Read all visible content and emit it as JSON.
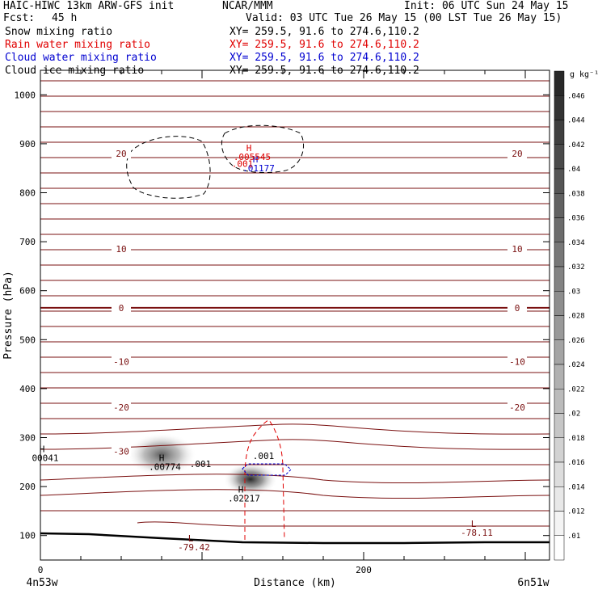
{
  "header": {
    "model": "HAIC-HIWC 13km ARW-GFS init",
    "org": "NCAR/MMM",
    "init": "Init: 06 UTC Sun 24 May 15",
    "fcst_label": "Fcst:",
    "fcst_value": "45 h",
    "valid": "Valid: 03 UTC Tue 26 May 15 (00 LST Tue 26 May 15)"
  },
  "fields": [
    {
      "name": "Snow mixing ratio",
      "xy": "XY= 259.5, 91.6 to 274.6,110.2",
      "color": "#000000"
    },
    {
      "name": "Rain water mixing ratio",
      "xy": "XY= 259.5, 91.6 to 274.6,110.2",
      "color": "#e00000"
    },
    {
      "name": "Cloud water mixing ratio",
      "xy": "XY= 259.5, 91.6 to 274.6,110.2",
      "color": "#0000d0"
    },
    {
      "name": "Cloud ice mixing ratio",
      "xy": "XY= 259.5, 91.6 to 274.6,110.2",
      "color": "#000000"
    }
  ],
  "chart_data": {
    "type": "contour",
    "xlabel": "Distance (km)",
    "ylabel": "Pressure (hPa)",
    "xlim": [
      0,
      315
    ],
    "ylim": [
      1050,
      50
    ],
    "x_ticks": [
      0,
      200
    ],
    "y_ticks": [
      100,
      200,
      300,
      400,
      500,
      600,
      700,
      800,
      900,
      1000
    ],
    "x_end_labels": [
      "4n53w",
      "6n51w"
    ],
    "temperature_contours": [
      {
        "label": "-30",
        "p": 272
      },
      {
        "label": "-20",
        "p": 362
      },
      {
        "label": "-10",
        "p": 455
      },
      {
        "label": "0",
        "p": 565
      },
      {
        "label": "10",
        "p": 685
      },
      {
        "label": "20",
        "p": 880
      }
    ],
    "extrema": [
      {
        "kind": "L",
        "value": "-79.42",
        "x": 93,
        "p": 88
      },
      {
        "kind": "L",
        "value": "-78.11",
        "x": 268,
        "p": 118
      },
      {
        "kind": "H",
        "value": ".02217",
        "x": 124,
        "p": 188
      },
      {
        "kind": "H",
        "value": ".00774",
        "x": 75,
        "p": 252
      },
      {
        "kind": "H",
        "value": "00041",
        "x": 1,
        "p": 270
      },
      {
        "kind": "H",
        "value": ".01177",
        "x": 133,
        "p": 862
      },
      {
        "kind": "H",
        "value": ".005545",
        "x": 129,
        "p": 885
      }
    ],
    "contour_labels": [
      {
        "value": ".001",
        "x": 99,
        "p": 240,
        "color": "#000000"
      },
      {
        "value": ".001",
        "x": 138,
        "p": 256,
        "color": "#000000"
      },
      {
        "value": ".001",
        "x": 125,
        "p": 853,
        "color": "#e00000"
      }
    ],
    "colorbar": {
      "unit_label": "g kg⁻¹",
      "ticks": [
        ".046",
        ".044",
        ".042",
        ".04",
        ".038",
        ".036",
        ".034",
        ".032",
        ".03",
        ".028",
        ".026",
        ".024",
        ".022",
        ".02",
        ".018",
        ".016",
        ".014",
        ".012",
        ".01"
      ]
    },
    "shaded_maxima": [
      {
        "x": 130,
        "p": 215,
        "value": 0.022
      },
      {
        "x": 75,
        "p": 265,
        "value": 0.008
      }
    ]
  }
}
